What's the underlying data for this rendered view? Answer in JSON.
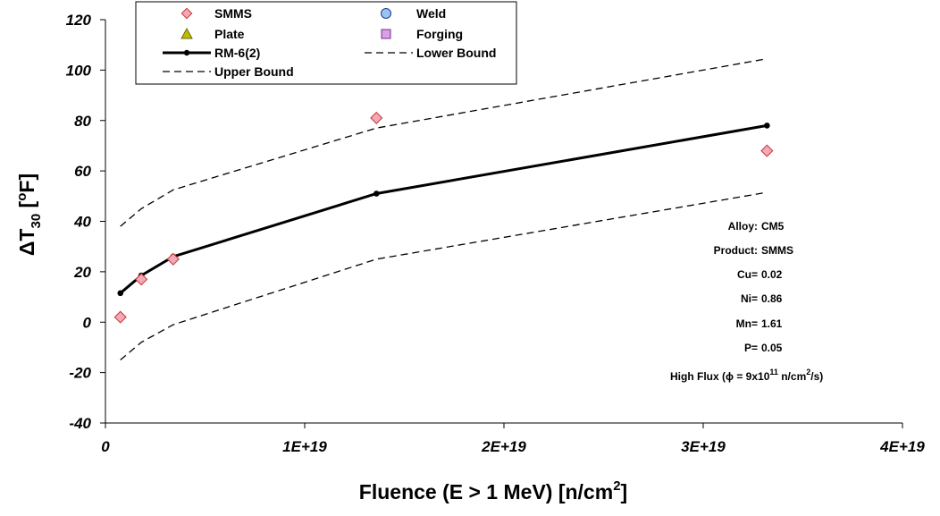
{
  "chart_data": {
    "type": "scatter",
    "xlabel_parts": {
      "main": "Fluence  (E > 1 MeV)  [n/cm",
      "sup": "2",
      "tail": "]"
    },
    "ylabel_parts": {
      "delta": "Δ",
      "T": "T",
      "sub": "30",
      "mid": "  [",
      "deg": "o",
      "tail": "F]"
    },
    "xlim": [
      0,
      4e+19
    ],
    "ylim": [
      -40,
      120
    ],
    "x_ticks": [
      0,
      1e+19,
      2e+19,
      3e+19,
      4e+19
    ],
    "x_tick_labels": [
      "0",
      "1E+19",
      "2E+19",
      "3E+19",
      "4E+19"
    ],
    "y_ticks": [
      -40,
      -20,
      0,
      20,
      40,
      60,
      80,
      100,
      120
    ],
    "y_tick_labels": [
      "-40",
      "-20",
      "0",
      "20",
      "40",
      "60",
      "80",
      "100",
      "120"
    ],
    "grid": false,
    "legend_position": "top-left",
    "legend": {
      "smms": "SMMS",
      "weld": "Weld",
      "plate": "Plate",
      "forging": "Forging",
      "rm6": "RM-6(2)",
      "lower": "Lower Bound",
      "upper": "Upper Bound"
    },
    "series": [
      {
        "key": "smms",
        "marker": "diamond",
        "color": "#f4a7b9",
        "x": [
          7.5e+17,
          1.8e+18,
          3.4e+18,
          1.36e+19,
          3.32e+19
        ],
        "y": [
          2,
          17,
          25,
          81,
          68
        ]
      },
      {
        "key": "rm6",
        "style": "solid-line-dots",
        "color": "#000000",
        "x": [
          7.5e+17,
          1.8e+18,
          3.4e+18,
          1.36e+19,
          3.32e+19
        ],
        "y": [
          11.5,
          18.5,
          26,
          51,
          78
        ]
      },
      {
        "key": "upper",
        "style": "dashed",
        "color": "#000000",
        "x": [
          7.5e+17,
          1.8e+18,
          3.4e+18,
          1.36e+19,
          3.32e+19
        ],
        "y": [
          38,
          45,
          52.5,
          77,
          104.5
        ]
      },
      {
        "key": "lower",
        "style": "dashed",
        "color": "#000000",
        "x": [
          7.5e+17,
          1.8e+18,
          3.4e+18,
          1.36e+19,
          3.32e+19
        ],
        "y": [
          -15,
          -8,
          -1,
          25,
          51.5
        ]
      }
    ],
    "marker_colors": {
      "smms": "#f4a7b9",
      "weld": "#9cc3ee",
      "plate": "#bcbc00",
      "forging": "#d9a0e6"
    },
    "annotations": [
      {
        "label": "Alloy:",
        "value": "CM5"
      },
      {
        "label": "Product:",
        "value": "SMMS"
      },
      {
        "label": "Cu=",
        "value": "0.02"
      },
      {
        "label": "Ni=",
        "value": "0.86"
      },
      {
        "label": "Mn=",
        "value": "1.61"
      },
      {
        "label": "P=",
        "value": "0.05"
      }
    ],
    "flux_note": {
      "lead": "High Flux (",
      "phi": "ϕ",
      "eq": " = 9x10",
      "exp": "11",
      "unit": " n/cm",
      "sq": "2",
      "tail": "/s)"
    }
  }
}
